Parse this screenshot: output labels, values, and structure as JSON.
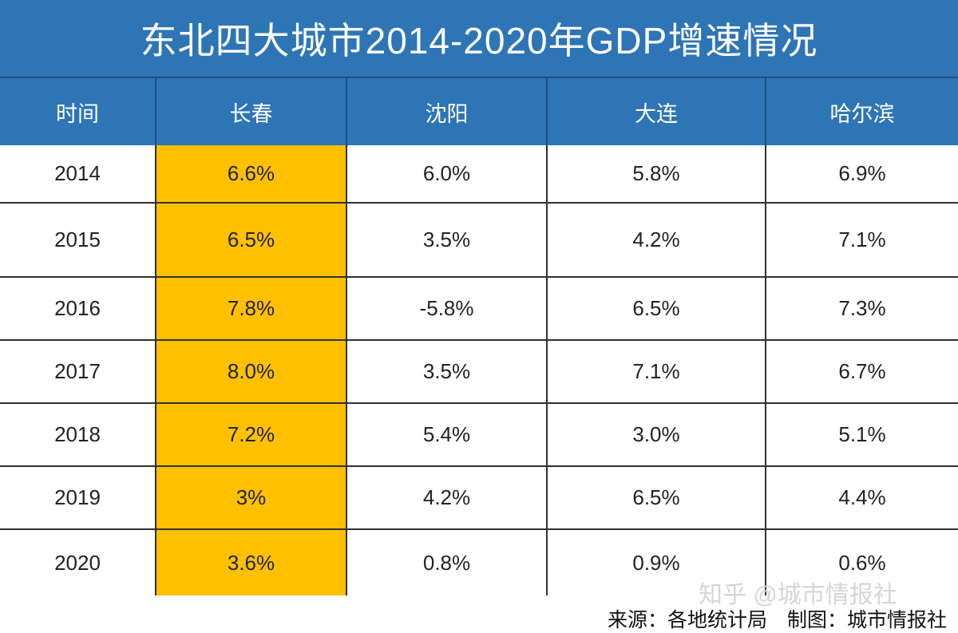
{
  "chart_data": {
    "type": "table",
    "title": "东北四大城市2014-2020年GDP增速情况",
    "columns": [
      "时间",
      "长春",
      "沈阳",
      "大连",
      "哈尔滨"
    ],
    "rows": [
      [
        "2014",
        "6.6%",
        "6.0%",
        "5.8%",
        "6.9%"
      ],
      [
        "2015",
        "6.5%",
        "3.5%",
        "4.2%",
        "7.1%"
      ],
      [
        "2016",
        "7.8%",
        "-5.8%",
        "6.5%",
        "7.3%"
      ],
      [
        "2017",
        "8.0%",
        "3.5%",
        "7.1%",
        "6.7%"
      ],
      [
        "2018",
        "7.2%",
        "5.4%",
        "3.0%",
        "5.1%"
      ],
      [
        "2019",
        "3%",
        "4.2%",
        "6.5%",
        "4.4%"
      ],
      [
        "2020",
        "3.6%",
        "0.8%",
        "0.9%",
        "0.6%"
      ]
    ],
    "highlight_column": "长春"
  },
  "footer": {
    "source": "来源：各地统计局　制图：城市情报社"
  },
  "watermark": "知乎 @城市情报社",
  "colors": {
    "header_blue": "#2e75b6",
    "highlight": "#ffc000",
    "grid_line": "#303030"
  }
}
